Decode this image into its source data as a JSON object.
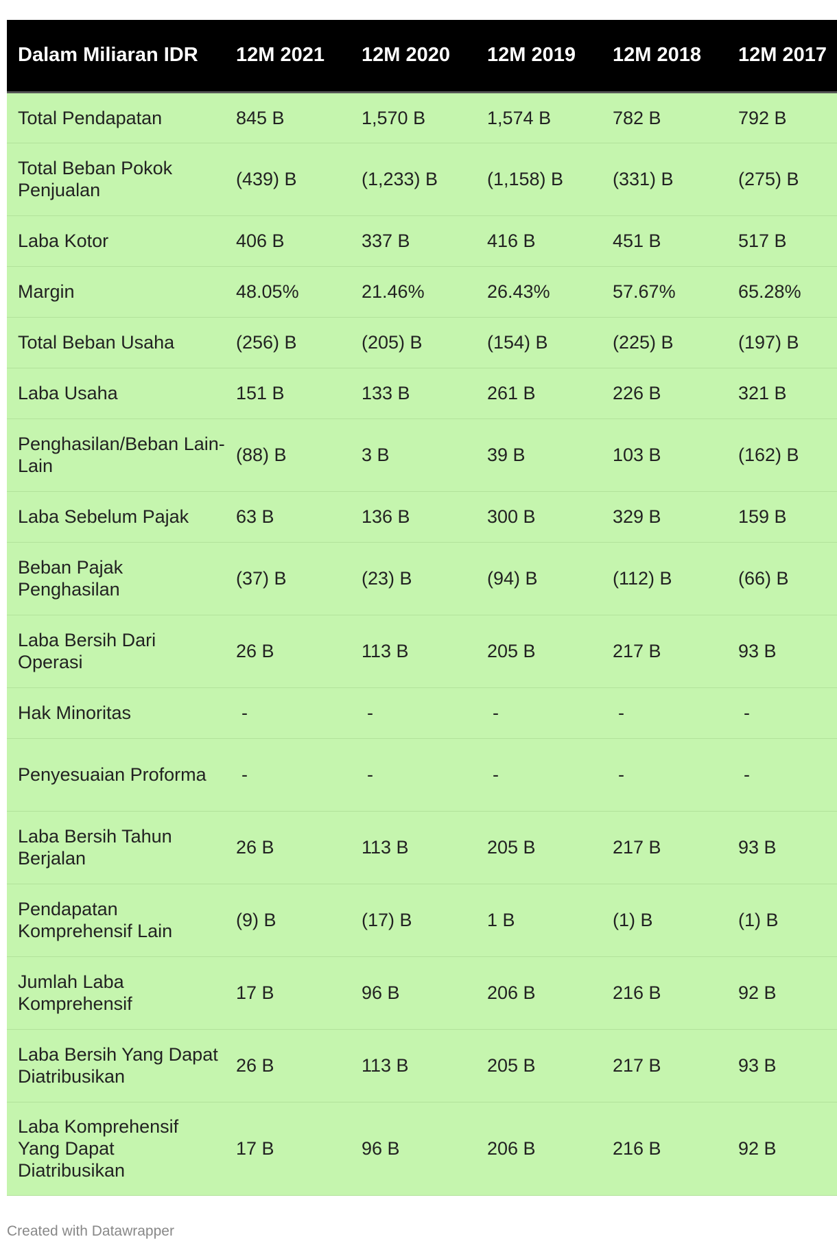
{
  "chart_data": {
    "type": "table",
    "columns": [
      "Dalam Miliaran IDR",
      "12M 2021",
      "12M 2020",
      "12M 2019",
      "12M 2018",
      "12M 2017"
    ],
    "rows": [
      {
        "label": "Total Pendapatan",
        "values": [
          "845 B",
          "1,570 B",
          "1,574 B",
          "782 B",
          "792 B"
        ]
      },
      {
        "label": "Total Beban Pokok Penjualan",
        "values": [
          "(439) B",
          "(1,233) B",
          "(1,158) B",
          "(331) B",
          "(275) B"
        ]
      },
      {
        "label": "Laba Kotor",
        "values": [
          "406 B",
          "337 B",
          "416 B",
          "451 B",
          "517 B"
        ]
      },
      {
        "label": "Margin",
        "values": [
          "48.05%",
          "21.46%",
          "26.43%",
          "57.67%",
          "65.28%"
        ]
      },
      {
        "label": "Total Beban Usaha",
        "values": [
          "(256) B",
          "(205) B",
          "(154) B",
          "(225) B",
          "(197) B"
        ]
      },
      {
        "label": "Laba Usaha",
        "values": [
          "151 B",
          "133 B",
          "261 B",
          "226 B",
          "321 B"
        ]
      },
      {
        "label": "Penghasilan/Beban Lain-Lain",
        "values": [
          "(88) B",
          "3 B",
          "39 B",
          "103 B",
          "(162) B"
        ]
      },
      {
        "label": "Laba Sebelum Pajak",
        "values": [
          "63 B",
          "136 B",
          "300 B",
          "329 B",
          "159 B"
        ]
      },
      {
        "label": "Beban Pajak Penghasilan",
        "values": [
          "(37) B",
          "(23) B",
          "(94) B",
          "(112) B",
          "(66) B"
        ]
      },
      {
        "label": "Laba Bersih Dari Operasi",
        "values": [
          "26 B",
          "113 B",
          "205 B",
          "217 B",
          "93 B"
        ]
      },
      {
        "label": "Hak Minoritas",
        "values": [
          "-",
          "-",
          "-",
          "-",
          "-"
        ]
      },
      {
        "label": "Penyesuaian Proforma",
        "values": [
          "-",
          "-",
          "-",
          "-",
          "-"
        ]
      },
      {
        "label": "Laba Bersih Tahun Berjalan",
        "values": [
          "26 B",
          "113 B",
          "205 B",
          "217 B",
          "93 B"
        ]
      },
      {
        "label": "Pendapatan Komprehensif Lain",
        "values": [
          "(9) B",
          "(17) B",
          "1 B",
          "(1) B",
          "(1) B"
        ]
      },
      {
        "label": "Jumlah Laba Komprehensif",
        "values": [
          "17 B",
          "96 B",
          "206 B",
          "216 B",
          "92 B"
        ]
      },
      {
        "label": "Laba Bersih Yang Dapat Diatribusikan",
        "values": [
          "26 B",
          "113 B",
          "205 B",
          "217 B",
          "93 B"
        ]
      },
      {
        "label": "Laba Komprehensif Yang Dapat Diatribusikan",
        "values": [
          "17 B",
          "96 B",
          "206 B",
          "216 B",
          "92 B"
        ]
      }
    ],
    "colors": {
      "header_bg": "#000000",
      "header_text": "#ffffff",
      "row_bg": "#c5f5ae",
      "row_text": "#222222"
    }
  },
  "footer": {
    "credit": "Created with Datawrapper"
  }
}
